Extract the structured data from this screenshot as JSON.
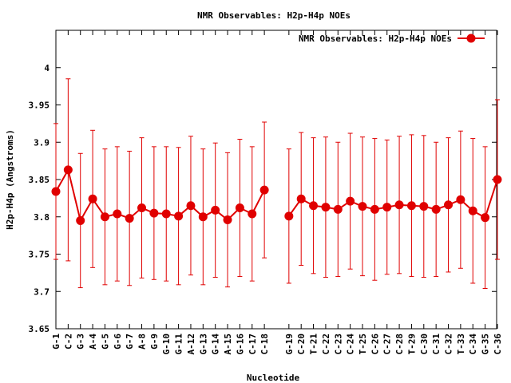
{
  "chart_data": {
    "type": "line",
    "title": "NMR Observables: H2p-H4p NOEs",
    "xlabel": "Nucleotide",
    "ylabel": "H2p-H4p (Angstroms)",
    "ylim": [
      3.65,
      4.05
    ],
    "yticks": [
      "3.65",
      "3.7",
      "3.75",
      "3.8",
      "3.85",
      "3.9",
      "3.95",
      "4"
    ],
    "legend_position": "top-right",
    "series": [
      {
        "name": "NMR Observables: H2p-H4p NOEs",
        "color": "#e00000",
        "error_bars": true,
        "points": [
          {
            "label": "G-1",
            "y": 3.834,
            "err": 0.091
          },
          {
            "label": "C-2",
            "y": 3.863,
            "err": 0.122
          },
          {
            "label": "G-3",
            "y": 3.795,
            "err": 0.09
          },
          {
            "label": "A-4",
            "y": 3.824,
            "err": 0.092
          },
          {
            "label": "G-5",
            "y": 3.8,
            "err": 0.091
          },
          {
            "label": "G-6",
            "y": 3.804,
            "err": 0.09
          },
          {
            "label": "G-7",
            "y": 3.798,
            "err": 0.09
          },
          {
            "label": "A-8",
            "y": 3.812,
            "err": 0.094
          },
          {
            "label": "G-9",
            "y": 3.805,
            "err": 0.089
          },
          {
            "label": "G-10",
            "y": 3.804,
            "err": 0.09
          },
          {
            "label": "G-11",
            "y": 3.801,
            "err": 0.092
          },
          {
            "label": "A-12",
            "y": 3.815,
            "err": 0.093
          },
          {
            "label": "G-13",
            "y": 3.8,
            "err": 0.091
          },
          {
            "label": "G-14",
            "y": 3.809,
            "err": 0.09
          },
          {
            "label": "A-15",
            "y": 3.796,
            "err": 0.09
          },
          {
            "label": "G-16",
            "y": 3.812,
            "err": 0.092
          },
          {
            "label": "C-17",
            "y": 3.804,
            "err": 0.09
          },
          {
            "label": "C-18",
            "y": 3.836,
            "err": 0.091
          },
          {
            "label": "G-19",
            "y": 3.801,
            "err": 0.09,
            "gap_before": true
          },
          {
            "label": "C-20",
            "y": 3.824,
            "err": 0.089
          },
          {
            "label": "T-21",
            "y": 3.815,
            "err": 0.091
          },
          {
            "label": "C-22",
            "y": 3.813,
            "err": 0.094
          },
          {
            "label": "C-23",
            "y": 3.81,
            "err": 0.09
          },
          {
            "label": "C-24",
            "y": 3.821,
            "err": 0.091
          },
          {
            "label": "T-25",
            "y": 3.814,
            "err": 0.093
          },
          {
            "label": "C-26",
            "y": 3.81,
            "err": 0.095
          },
          {
            "label": "C-27",
            "y": 3.813,
            "err": 0.09
          },
          {
            "label": "C-28",
            "y": 3.816,
            "err": 0.092
          },
          {
            "label": "T-29",
            "y": 3.815,
            "err": 0.095
          },
          {
            "label": "C-30",
            "y": 3.814,
            "err": 0.095
          },
          {
            "label": "C-31",
            "y": 3.81,
            "err": 0.09
          },
          {
            "label": "C-32",
            "y": 3.816,
            "err": 0.09
          },
          {
            "label": "T-33",
            "y": 3.823,
            "err": 0.092
          },
          {
            "label": "C-34",
            "y": 3.808,
            "err": 0.097
          },
          {
            "label": "G-35",
            "y": 3.799,
            "err": 0.095
          },
          {
            "label": "C-36",
            "y": 3.85,
            "err": 0.107
          }
        ]
      }
    ]
  }
}
